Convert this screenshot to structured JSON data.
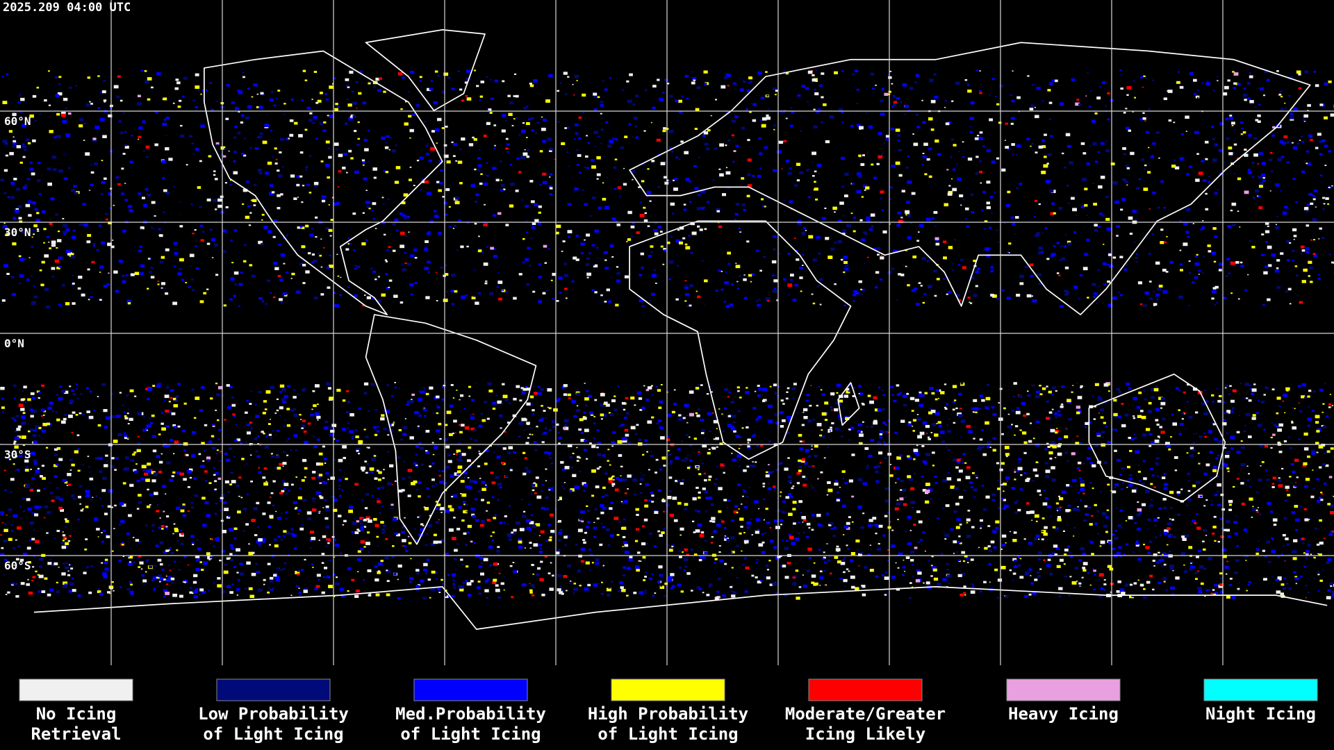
{
  "header": {
    "timestamp": "2025.209 04:00 UTC"
  },
  "map": {
    "latitude_labels": [
      "60°N",
      "30°N",
      "0°N",
      "30°S",
      "60°S"
    ]
  },
  "legend": {
    "items": [
      {
        "label_lines": [
          "No Icing",
          "Retrieval"
        ],
        "color": "#f0f0f0"
      },
      {
        "label_lines": [
          "Low Probability",
          "of Light Icing"
        ],
        "color": "#000a78"
      },
      {
        "label_lines": [
          "Med.Probability",
          "of Light Icing"
        ],
        "color": "#0000ff"
      },
      {
        "label_lines": [
          "High Probability",
          "of Light Icing"
        ],
        "color": "#ffff00"
      },
      {
        "label_lines": [
          "Moderate/Greater",
          "Icing Likely"
        ],
        "color": "#ff0000"
      },
      {
        "label_lines": [
          "Heavy Icing"
        ],
        "color": "#e8a0e0"
      },
      {
        "label_lines": [
          "Night Icing"
        ],
        "color": "#00ffff"
      }
    ]
  }
}
